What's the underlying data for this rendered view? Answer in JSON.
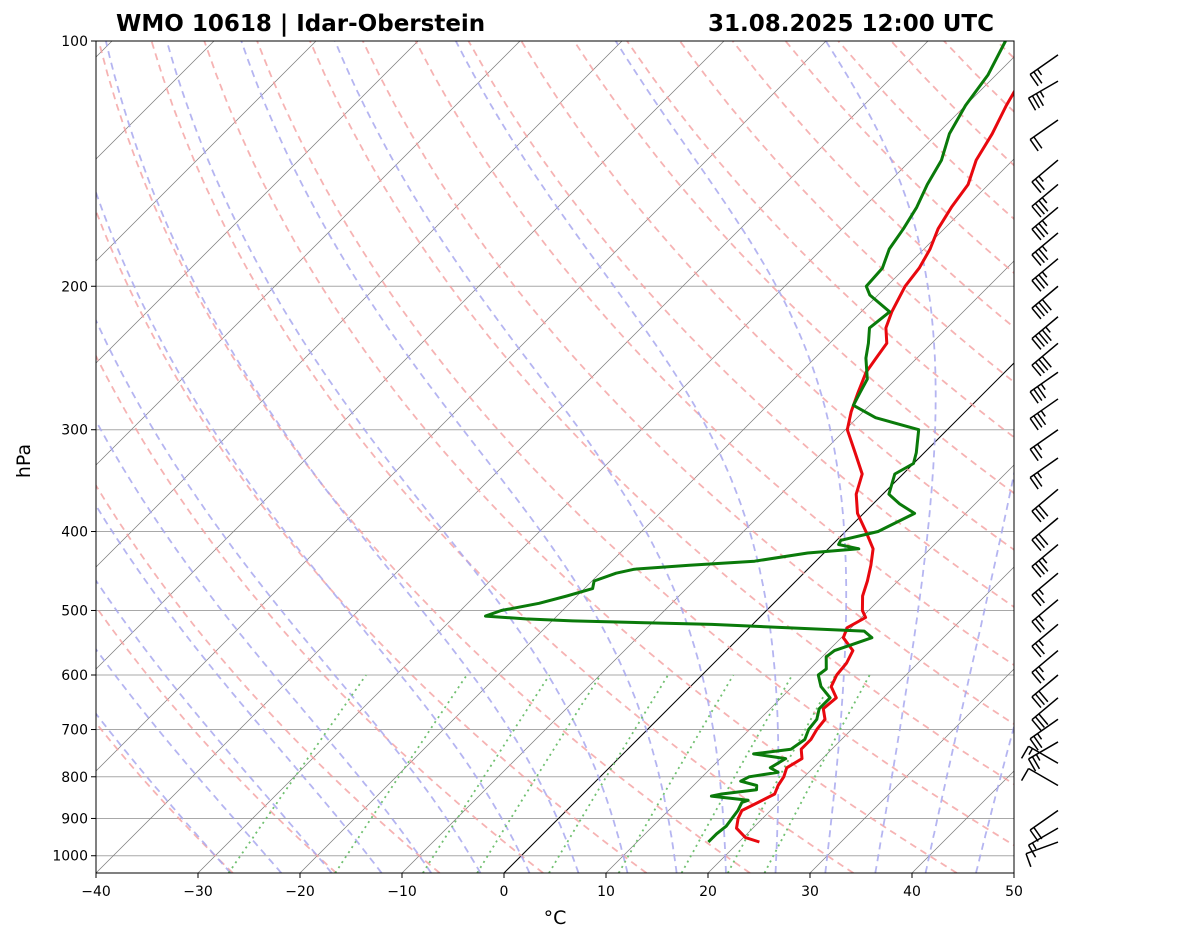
{
  "title_left": "WMO 10618 | Idar-Oberstein",
  "title_right": "31.08.2025 12:00 UTC",
  "chart_data": {
    "type": "skew-t",
    "xlabel": "°C",
    "ylabel": "hPa",
    "xlim": [
      -40,
      50
    ],
    "ylim": [
      1050,
      100
    ],
    "x_ticks": [
      "−40",
      "−30",
      "−20",
      "−10",
      "0",
      "10",
      "20",
      "30",
      "40",
      "50"
    ],
    "x_tick_values": [
      -40,
      -30,
      -20,
      -10,
      0,
      10,
      20,
      30,
      40,
      50
    ],
    "y_ticks": [
      "100",
      "200",
      "300",
      "400",
      "500",
      "600",
      "700",
      "800",
      "900",
      "1000"
    ],
    "y_tick_values": [
      100,
      200,
      300,
      400,
      500,
      600,
      700,
      800,
      900,
      1000
    ],
    "grid": true,
    "highlighted_isotherm_c": 0,
    "colors": {
      "temperature": "#e8080e",
      "dewpoint": "#0a7a0a",
      "dry_adiabat": "#f4a0a0",
      "moist_adiabat": "#a8a8ee",
      "mixing_ratio": "#70c070",
      "isotherm": "#7a7a7a",
      "isobar": "#a8a8a8"
    },
    "series": [
      {
        "name": "Temperature",
        "points": [
          [
            962,
            22.0
          ],
          [
            950,
            20.2
          ],
          [
            925,
            18.4
          ],
          [
            900,
            17.6
          ],
          [
            880,
            17.2
          ],
          [
            860,
            18.0
          ],
          [
            840,
            18.8
          ],
          [
            820,
            18.3
          ],
          [
            800,
            18.0
          ],
          [
            780,
            17.4
          ],
          [
            760,
            18.0
          ],
          [
            740,
            17.0
          ],
          [
            720,
            17.0
          ],
          [
            700,
            16.6
          ],
          [
            680,
            16.4
          ],
          [
            660,
            15.2
          ],
          [
            640,
            15.4
          ],
          [
            620,
            13.8
          ],
          [
            600,
            13.2
          ],
          [
            580,
            13.0
          ],
          [
            560,
            12.4
          ],
          [
            540,
            10.2
          ],
          [
            525,
            9.6
          ],
          [
            510,
            10.4
          ],
          [
            500,
            9.4
          ],
          [
            480,
            8.0
          ],
          [
            460,
            7.0
          ],
          [
            440,
            5.8
          ],
          [
            420,
            4.4
          ],
          [
            400,
            2.0
          ],
          [
            380,
            -0.6
          ],
          [
            360,
            -2.6
          ],
          [
            340,
            -4.0
          ],
          [
            320,
            -6.8
          ],
          [
            300,
            -9.8
          ],
          [
            285,
            -11.2
          ],
          [
            270,
            -12.4
          ],
          [
            255,
            -13.6
          ],
          [
            245,
            -14.0
          ],
          [
            235,
            -14.4
          ],
          [
            225,
            -16.0
          ],
          [
            215,
            -17.0
          ],
          [
            200,
            -18.2
          ],
          [
            190,
            -18.6
          ],
          [
            180,
            -19.4
          ],
          [
            170,
            -20.6
          ],
          [
            160,
            -21.4
          ],
          [
            150,
            -22.0
          ],
          [
            140,
            -23.6
          ],
          [
            130,
            -24.6
          ],
          [
            120,
            -26.0
          ],
          [
            112,
            -27.0
          ],
          [
            105,
            -28.6
          ],
          [
            100,
            -30.0
          ]
        ]
      },
      {
        "name": "Dewpoint",
        "points": [
          [
            962,
            17.0
          ],
          [
            940,
            17.0
          ],
          [
            920,
            17.2
          ],
          [
            900,
            17.0
          ],
          [
            880,
            16.8
          ],
          [
            860,
            16.4
          ],
          [
            855,
            16.8
          ],
          [
            845,
            12.8
          ],
          [
            840,
            13.6
          ],
          [
            830,
            16.6
          ],
          [
            820,
            16.2
          ],
          [
            810,
            14.2
          ],
          [
            800,
            14.6
          ],
          [
            790,
            17.0
          ],
          [
            780,
            15.8
          ],
          [
            760,
            16.4
          ],
          [
            750,
            12.8
          ],
          [
            740,
            16.0
          ],
          [
            720,
            16.4
          ],
          [
            700,
            15.8
          ],
          [
            680,
            15.6
          ],
          [
            660,
            14.8
          ],
          [
            640,
            14.8
          ],
          [
            620,
            12.8
          ],
          [
            600,
            11.4
          ],
          [
            590,
            11.6
          ],
          [
            570,
            10.4
          ],
          [
            560,
            10.6
          ],
          [
            550,
            11.8
          ],
          [
            540,
            13.0
          ],
          [
            530,
            11.6
          ],
          [
            520,
            -4.0
          ],
          [
            515,
            -18.0
          ],
          [
            512,
            -22.8
          ],
          [
            508,
            -27.0
          ],
          [
            500,
            -26.0
          ],
          [
            490,
            -23.0
          ],
          [
            480,
            -21.0
          ],
          [
            470,
            -19.2
          ],
          [
            460,
            -19.8
          ],
          [
            450,
            -18.4
          ],
          [
            445,
            -17.0
          ],
          [
            440,
            -12.0
          ],
          [
            435,
            -6.0
          ],
          [
            425,
            -1.6
          ],
          [
            420,
            3.0
          ],
          [
            415,
            0.6
          ],
          [
            410,
            0.4
          ],
          [
            400,
            3.2
          ],
          [
            380,
            5.0
          ],
          [
            370,
            2.6
          ],
          [
            360,
            0.6
          ],
          [
            340,
            -0.8
          ],
          [
            330,
            0.0
          ],
          [
            320,
            -0.8
          ],
          [
            300,
            -2.8
          ],
          [
            290,
            -8.2
          ],
          [
            280,
            -11.6
          ],
          [
            270,
            -12.2
          ],
          [
            260,
            -12.8
          ],
          [
            245,
            -15.0
          ],
          [
            235,
            -16.2
          ],
          [
            225,
            -17.6
          ],
          [
            215,
            -17.2
          ],
          [
            205,
            -20.8
          ],
          [
            200,
            -22.0
          ],
          [
            190,
            -22.2
          ],
          [
            180,
            -23.4
          ],
          [
            170,
            -24.0
          ],
          [
            160,
            -24.8
          ],
          [
            150,
            -26.0
          ],
          [
            140,
            -27.0
          ],
          [
            130,
            -28.8
          ],
          [
            120,
            -30.0
          ],
          [
            110,
            -30.8
          ],
          [
            100,
            -32.4
          ]
        ]
      }
    ],
    "wind_barbs": [
      {
        "p": 962,
        "dir_deg": 250,
        "speed_kt": 10
      },
      {
        "p": 925,
        "dir_deg": 240,
        "speed_kt": 15
      },
      {
        "p": 880,
        "dir_deg": 235,
        "speed_kt": 20
      },
      {
        "p": 820,
        "dir_deg": 300,
        "speed_kt": 10
      },
      {
        "p": 770,
        "dir_deg": 300,
        "speed_kt": 15
      },
      {
        "p": 725,
        "dir_deg": 240,
        "speed_kt": 25
      },
      {
        "p": 680,
        "dir_deg": 235,
        "speed_kt": 25
      },
      {
        "p": 640,
        "dir_deg": 230,
        "speed_kt": 30
      },
      {
        "p": 600,
        "dir_deg": 230,
        "speed_kt": 30
      },
      {
        "p": 560,
        "dir_deg": 230,
        "speed_kt": 25
      },
      {
        "p": 520,
        "dir_deg": 230,
        "speed_kt": 25
      },
      {
        "p": 485,
        "dir_deg": 230,
        "speed_kt": 25
      },
      {
        "p": 450,
        "dir_deg": 230,
        "speed_kt": 25
      },
      {
        "p": 415,
        "dir_deg": 230,
        "speed_kt": 35
      },
      {
        "p": 385,
        "dir_deg": 230,
        "speed_kt": 30
      },
      {
        "p": 355,
        "dir_deg": 230,
        "speed_kt": 30
      },
      {
        "p": 325,
        "dir_deg": 235,
        "speed_kt": 25
      },
      {
        "p": 300,
        "dir_deg": 235,
        "speed_kt": 25
      },
      {
        "p": 275,
        "dir_deg": 235,
        "speed_kt": 35
      },
      {
        "p": 255,
        "dir_deg": 235,
        "speed_kt": 35
      },
      {
        "p": 235,
        "dir_deg": 230,
        "speed_kt": 40
      },
      {
        "p": 218,
        "dir_deg": 230,
        "speed_kt": 45
      },
      {
        "p": 200,
        "dir_deg": 230,
        "speed_kt": 40
      },
      {
        "p": 185,
        "dir_deg": 230,
        "speed_kt": 35
      },
      {
        "p": 172,
        "dir_deg": 230,
        "speed_kt": 35
      },
      {
        "p": 160,
        "dir_deg": 230,
        "speed_kt": 35
      },
      {
        "p": 150,
        "dir_deg": 230,
        "speed_kt": 35
      },
      {
        "p": 140,
        "dir_deg": 230,
        "speed_kt": 25
      },
      {
        "p": 125,
        "dir_deg": 235,
        "speed_kt": 20
      },
      {
        "p": 112,
        "dir_deg": 240,
        "speed_kt": 35
      },
      {
        "p": 104,
        "dir_deg": 235,
        "speed_kt": 25
      }
    ]
  }
}
